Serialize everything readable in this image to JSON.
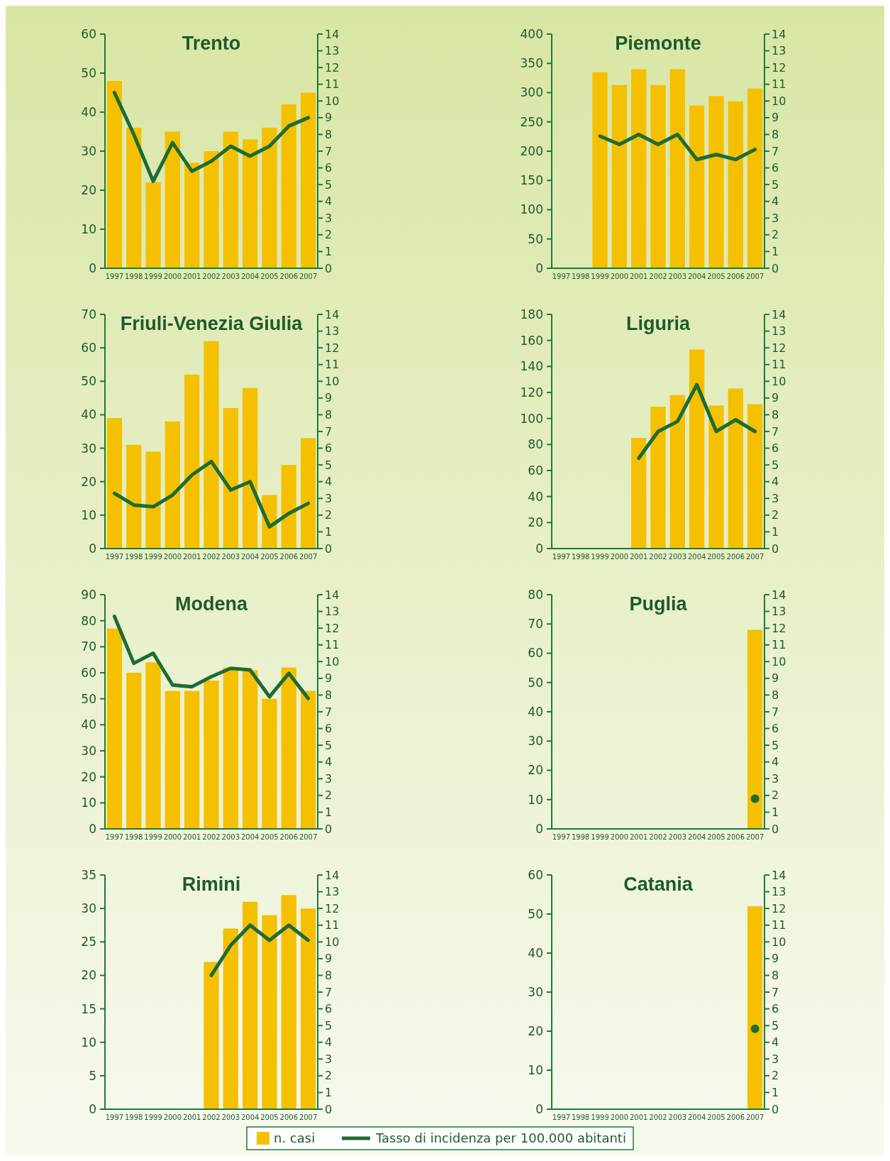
{
  "chart_data": [
    {
      "type": "bar",
      "title": "Trento",
      "categories": [
        "1997",
        "1998",
        "1999",
        "2000",
        "2001",
        "2002",
        "2003",
        "2004",
        "2005",
        "2006",
        "2007"
      ],
      "ylim": [
        0,
        60
      ],
      "yticks": [
        0,
        10,
        20,
        30,
        40,
        50,
        60
      ],
      "y2lim": [
        0,
        14
      ],
      "y2ticks": [
        0,
        1,
        2,
        3,
        4,
        5,
        6,
        7,
        8,
        9,
        10,
        11,
        12,
        13,
        14
      ],
      "legend": "bottom",
      "series": [
        {
          "name": "n. casi",
          "color": "#f5c000",
          "values": [
            48,
            36,
            22,
            35,
            27,
            30,
            35,
            33,
            36,
            42,
            45
          ]
        },
        {
          "name": "Tasso di incidenza per 100.000 abitanti",
          "type": "line",
          "axis": "y2",
          "color": "#1d6b35",
          "values": [
            10.5,
            8.0,
            5.2,
            7.5,
            5.8,
            6.4,
            7.3,
            6.7,
            7.3,
            8.5,
            9.0
          ]
        }
      ]
    },
    {
      "type": "bar",
      "title": "Piemonte",
      "categories": [
        "1997",
        "1998",
        "1999",
        "2000",
        "2001",
        "2002",
        "2003",
        "2004",
        "2005",
        "2006",
        "2007"
      ],
      "ylim": [
        0,
        400
      ],
      "yticks": [
        0,
        50,
        100,
        150,
        200,
        250,
        300,
        350,
        400
      ],
      "y2lim": [
        0,
        14
      ],
      "y2ticks": [
        0,
        1,
        2,
        3,
        4,
        5,
        6,
        7,
        8,
        9,
        10,
        11,
        12,
        13,
        14
      ],
      "series": [
        {
          "color": "#f5c000",
          "values": [
            null,
            null,
            335,
            313,
            340,
            313,
            340,
            278,
            294,
            285,
            307
          ]
        },
        {
          "type": "line",
          "axis": "y2",
          "color": "#1d6b35",
          "values": [
            null,
            null,
            7.9,
            7.4,
            8.0,
            7.4,
            8.0,
            6.5,
            6.8,
            6.5,
            7.1
          ]
        }
      ]
    },
    {
      "type": "bar",
      "title": "Friuli-Venezia Giulia",
      "categories": [
        "1997",
        "1998",
        "1999",
        "2000",
        "2001",
        "2002",
        "2003",
        "2004",
        "2005",
        "2006",
        "2007"
      ],
      "ylim": [
        0,
        70
      ],
      "yticks": [
        0,
        10,
        20,
        30,
        40,
        50,
        60,
        70
      ],
      "y2lim": [
        0,
        14
      ],
      "y2ticks": [
        0,
        1,
        2,
        3,
        4,
        5,
        6,
        7,
        8,
        9,
        10,
        11,
        12,
        13,
        14
      ],
      "series": [
        {
          "color": "#f5c000",
          "values": [
            39,
            31,
            29,
            38,
            52,
            62,
            42,
            48,
            16,
            25,
            33
          ]
        },
        {
          "type": "line",
          "axis": "y2",
          "color": "#1d6b35",
          "values": [
            3.3,
            2.6,
            2.5,
            3.2,
            4.4,
            5.2,
            3.5,
            4.0,
            1.3,
            2.1,
            2.7
          ]
        }
      ]
    },
    {
      "type": "bar",
      "title": "Liguria",
      "categories": [
        "1997",
        "1998",
        "1999",
        "2000",
        "2001",
        "2002",
        "2003",
        "2004",
        "2005",
        "2006",
        "2007"
      ],
      "ylim": [
        0,
        180
      ],
      "yticks": [
        0,
        20,
        40,
        60,
        80,
        100,
        120,
        140,
        160,
        180
      ],
      "y2lim": [
        0,
        14
      ],
      "y2ticks": [
        0,
        1,
        2,
        3,
        4,
        5,
        6,
        7,
        8,
        9,
        10,
        11,
        12,
        13,
        14
      ],
      "series": [
        {
          "color": "#f5c000",
          "values": [
            null,
            null,
            null,
            null,
            85,
            109,
            118,
            153,
            110,
            123,
            111
          ]
        },
        {
          "type": "line",
          "axis": "y2",
          "color": "#1d6b35",
          "values": [
            null,
            null,
            null,
            null,
            5.4,
            7.0,
            7.6,
            9.8,
            7.0,
            7.7,
            7.0
          ]
        }
      ]
    },
    {
      "type": "bar",
      "title": "Modena",
      "categories": [
        "1997",
        "1998",
        "1999",
        "2000",
        "2001",
        "2002",
        "2003",
        "2004",
        "2005",
        "2006",
        "2007"
      ],
      "ylim": [
        0,
        90
      ],
      "yticks": [
        0,
        10,
        20,
        30,
        40,
        50,
        60,
        70,
        80,
        90
      ],
      "y2lim": [
        0,
        14
      ],
      "y2ticks": [
        0,
        1,
        2,
        3,
        4,
        5,
        6,
        7,
        8,
        9,
        10,
        11,
        12,
        13,
        14
      ],
      "series": [
        {
          "color": "#f5c000",
          "values": [
            77,
            60,
            64,
            53,
            53,
            57,
            62,
            61,
            50,
            62,
            53
          ]
        },
        {
          "type": "line",
          "axis": "y2",
          "color": "#1d6b35",
          "values": [
            12.7,
            9.9,
            10.5,
            8.6,
            8.5,
            9.1,
            9.6,
            9.5,
            7.9,
            9.3,
            7.8
          ]
        }
      ]
    },
    {
      "type": "bar",
      "title": "Puglia",
      "categories": [
        "1997",
        "1998",
        "1999",
        "2000",
        "2001",
        "2002",
        "2003",
        "2004",
        "2005",
        "2006",
        "2007"
      ],
      "ylim": [
        0,
        80
      ],
      "yticks": [
        0,
        10,
        20,
        30,
        40,
        50,
        60,
        70,
        80
      ],
      "y2lim": [
        0,
        14
      ],
      "y2ticks": [
        0,
        1,
        2,
        3,
        4,
        5,
        6,
        7,
        8,
        9,
        10,
        11,
        12,
        13,
        14
      ],
      "marker": "circle",
      "series": [
        {
          "color": "#f5c000",
          "values": [
            null,
            null,
            null,
            null,
            null,
            null,
            null,
            null,
            null,
            null,
            68
          ]
        },
        {
          "type": "line",
          "axis": "y2",
          "color": "#1d6b35",
          "values": [
            null,
            null,
            null,
            null,
            null,
            null,
            null,
            null,
            null,
            null,
            1.8
          ]
        }
      ]
    },
    {
      "type": "bar",
      "title": "Rimini",
      "categories": [
        "1997",
        "1998",
        "1999",
        "2000",
        "2001",
        "2002",
        "2003",
        "2004",
        "2005",
        "2006",
        "2007"
      ],
      "ylim": [
        0,
        35
      ],
      "yticks": [
        0,
        5,
        10,
        15,
        20,
        25,
        30,
        35
      ],
      "y2lim": [
        0,
        14
      ],
      "y2ticks": [
        0,
        1,
        2,
        3,
        4,
        5,
        6,
        7,
        8,
        9,
        10,
        11,
        12,
        13,
        14
      ],
      "series": [
        {
          "color": "#f5c000",
          "values": [
            null,
            null,
            null,
            null,
            null,
            22,
            27,
            31,
            29,
            32,
            30
          ]
        },
        {
          "type": "line",
          "axis": "y2",
          "color": "#1d6b35",
          "values": [
            null,
            null,
            null,
            null,
            null,
            8.0,
            9.8,
            11.0,
            10.1,
            11.0,
            10.1
          ]
        }
      ]
    },
    {
      "type": "bar",
      "title": "Catania",
      "categories": [
        "1997",
        "1998",
        "1999",
        "2000",
        "2001",
        "2002",
        "2003",
        "2004",
        "2005",
        "2006",
        "2007"
      ],
      "ylim": [
        0,
        60
      ],
      "yticks": [
        0,
        10,
        20,
        30,
        40,
        50,
        60
      ],
      "y2lim": [
        0,
        14
      ],
      "y2ticks": [
        0,
        1,
        2,
        3,
        4,
        5,
        6,
        7,
        8,
        9,
        10,
        11,
        12,
        13,
        14
      ],
      "marker": "circle",
      "series": [
        {
          "color": "#f5c000",
          "values": [
            null,
            null,
            null,
            null,
            null,
            null,
            null,
            null,
            null,
            null,
            52
          ]
        },
        {
          "type": "line",
          "axis": "y2",
          "color": "#1d6b35",
          "values": [
            null,
            null,
            null,
            null,
            null,
            null,
            null,
            null,
            null,
            null,
            4.8
          ]
        }
      ]
    }
  ]
}
